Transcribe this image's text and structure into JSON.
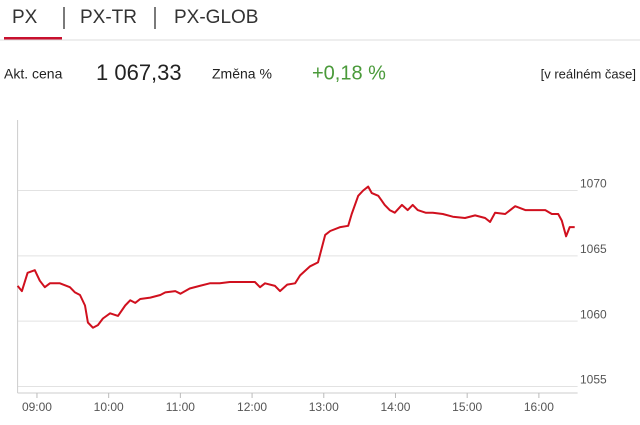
{
  "tabs": [
    "PX",
    "PX-TR",
    "PX-GLOB"
  ],
  "active_tab": 0,
  "quote": {
    "price_label": "Akt. cena",
    "price": "1 067,33",
    "change_label": "Změna %",
    "change": "+0,18 %",
    "realtime": "[v reálném čase]"
  },
  "chart_data": {
    "type": "line",
    "x": [
      8.73,
      8.79,
      8.87,
      8.97,
      9.04,
      9.11,
      9.18,
      9.32,
      9.46,
      9.53,
      9.6,
      9.67,
      9.71,
      9.78,
      9.85,
      9.92,
      10.02,
      10.13,
      10.23,
      10.3,
      10.37,
      10.44,
      10.58,
      10.72,
      10.79,
      10.93,
      11.0,
      11.13,
      11.27,
      11.41,
      11.55,
      11.69,
      11.83,
      12.04,
      12.11,
      12.18,
      12.32,
      12.39,
      12.49,
      12.6,
      12.67,
      12.81,
      12.92,
      13.02,
      13.09,
      13.23,
      13.34,
      13.39,
      13.48,
      13.55,
      13.62,
      13.67,
      13.76,
      13.85,
      13.92,
      13.99,
      14.09,
      14.17,
      14.24,
      14.31,
      14.42,
      14.52,
      14.66,
      14.8,
      14.97,
      15.11,
      15.25,
      15.32,
      15.39,
      15.53,
      15.67,
      15.81,
      15.95,
      16.09,
      16.18,
      16.27,
      16.32,
      16.38,
      16.43,
      16.5
    ],
    "series": [
      {
        "name": "PX",
        "color": "#d0101e",
        "values": [
          1062.7,
          1062.3,
          1063.7,
          1063.9,
          1063.1,
          1062.6,
          1062.9,
          1062.9,
          1062.6,
          1062.2,
          1062.0,
          1061.2,
          1059.9,
          1059.5,
          1059.7,
          1060.2,
          1060.6,
          1060.4,
          1061.2,
          1061.6,
          1061.4,
          1061.7,
          1061.8,
          1062.0,
          1062.2,
          1062.3,
          1062.1,
          1062.5,
          1062.7,
          1062.9,
          1062.9,
          1063.0,
          1063.0,
          1063.0,
          1062.6,
          1062.9,
          1062.7,
          1062.3,
          1062.8,
          1062.9,
          1063.5,
          1064.2,
          1064.5,
          1066.6,
          1066.9,
          1067.2,
          1067.3,
          1068.2,
          1069.6,
          1070.0,
          1070.3,
          1069.8,
          1069.6,
          1068.9,
          1068.5,
          1068.3,
          1068.9,
          1068.5,
          1068.9,
          1068.5,
          1068.3,
          1068.3,
          1068.2,
          1068.0,
          1067.9,
          1068.1,
          1067.9,
          1067.6,
          1068.3,
          1068.2,
          1068.8,
          1068.5,
          1068.5,
          1068.5,
          1068.2,
          1068.2,
          1067.7,
          1066.5,
          1067.2,
          1067.2
        ]
      }
    ],
    "xlim": [
      8.73,
      16.54
    ],
    "xticks": [
      {
        "value": 9,
        "label": "09:00"
      },
      {
        "value": 10,
        "label": "10:00"
      },
      {
        "value": 11,
        "label": "11:00"
      },
      {
        "value": 12,
        "label": "12:00"
      },
      {
        "value": 13,
        "label": "13:00"
      },
      {
        "value": 14,
        "label": "14:00"
      },
      {
        "value": 15,
        "label": "15:00"
      },
      {
        "value": 16,
        "label": "16:00"
      }
    ],
    "ylim": [
      1054.5,
      1075.4
    ],
    "yticks": [
      1055,
      1060,
      1065,
      1070
    ],
    "grid": true
  }
}
